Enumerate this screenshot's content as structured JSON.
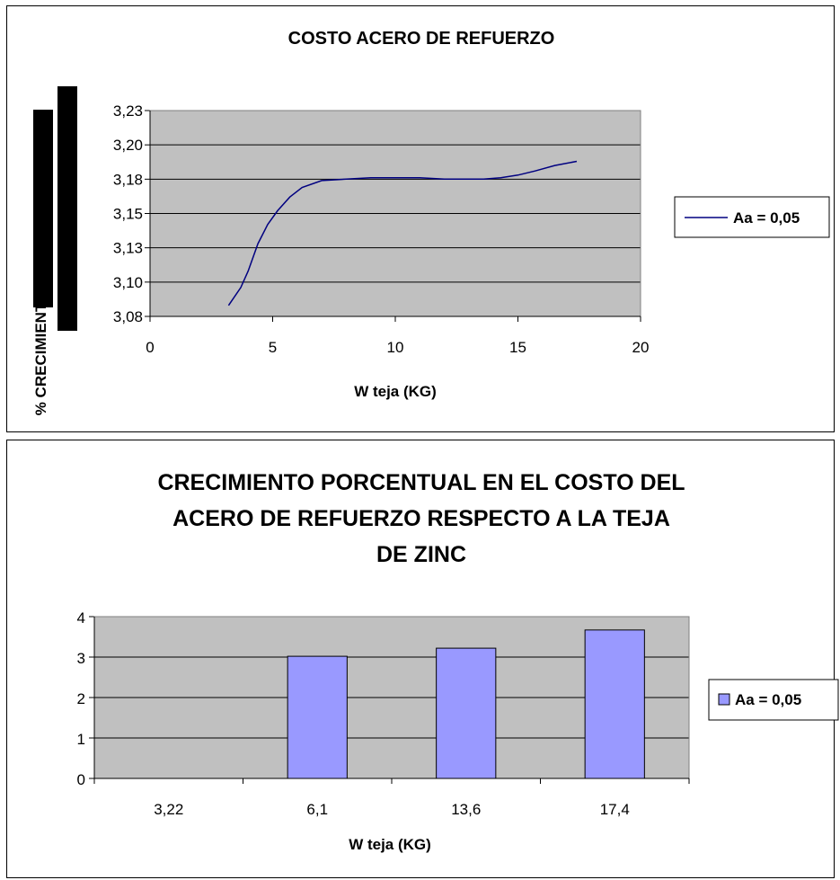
{
  "chart_data": [
    {
      "type": "line",
      "title": "COSTO ACERO DE REFUERZO",
      "xlabel": "W teja (KG)",
      "ylabel": "",
      "xlim": [
        0,
        20
      ],
      "ylim": [
        3.08,
        3.23
      ],
      "x_ticks": [
        "0",
        "5",
        "10",
        "15",
        "20"
      ],
      "y_ticks": [
        "3,08",
        "3,10",
        "3,13",
        "3,15",
        "3,18",
        "3,20",
        "3,23"
      ],
      "grid": true,
      "legend_position": "right",
      "series": [
        {
          "name": "Aa = 0,05",
          "color": "#000080",
          "points": [
            [
              3.2,
              3.088
            ],
            [
              3.7,
              3.101
            ],
            [
              4.0,
              3.113
            ],
            [
              4.4,
              3.133
            ],
            [
              4.8,
              3.147
            ],
            [
              5.2,
              3.157
            ],
            [
              5.7,
              3.167
            ],
            [
              6.2,
              3.174
            ],
            [
              7.0,
              3.179
            ],
            [
              8.0,
              3.18
            ],
            [
              9.0,
              3.181
            ],
            [
              10.0,
              3.181
            ],
            [
              11.0,
              3.181
            ],
            [
              12.0,
              3.18
            ],
            [
              13.0,
              3.18
            ],
            [
              13.6,
              3.18
            ],
            [
              14.3,
              3.181
            ],
            [
              15.0,
              3.183
            ],
            [
              15.7,
              3.186
            ],
            [
              16.5,
              3.19
            ],
            [
              17.4,
              3.193
            ]
          ]
        }
      ]
    },
    {
      "type": "bar",
      "title_lines": [
        "CRECIMIENTO PORCENTUAL EN EL COSTO DEL",
        "ACERO DE REFUERZO RESPECTO A LA TEJA",
        "DE ZINC"
      ],
      "xlabel": "W teja (KG)",
      "ylabel": "% CRECIMIENTO",
      "categories": [
        "3,22",
        "6,1",
        "13,6",
        "17,4"
      ],
      "ylim": [
        0,
        4
      ],
      "y_ticks": [
        "0",
        "1",
        "2",
        "3",
        "4"
      ],
      "grid": true,
      "legend_position": "right",
      "series": [
        {
          "name": "Aa = 0,05",
          "color": "#9999FF",
          "values": [
            0,
            3.02,
            3.22,
            3.67
          ]
        }
      ]
    }
  ]
}
